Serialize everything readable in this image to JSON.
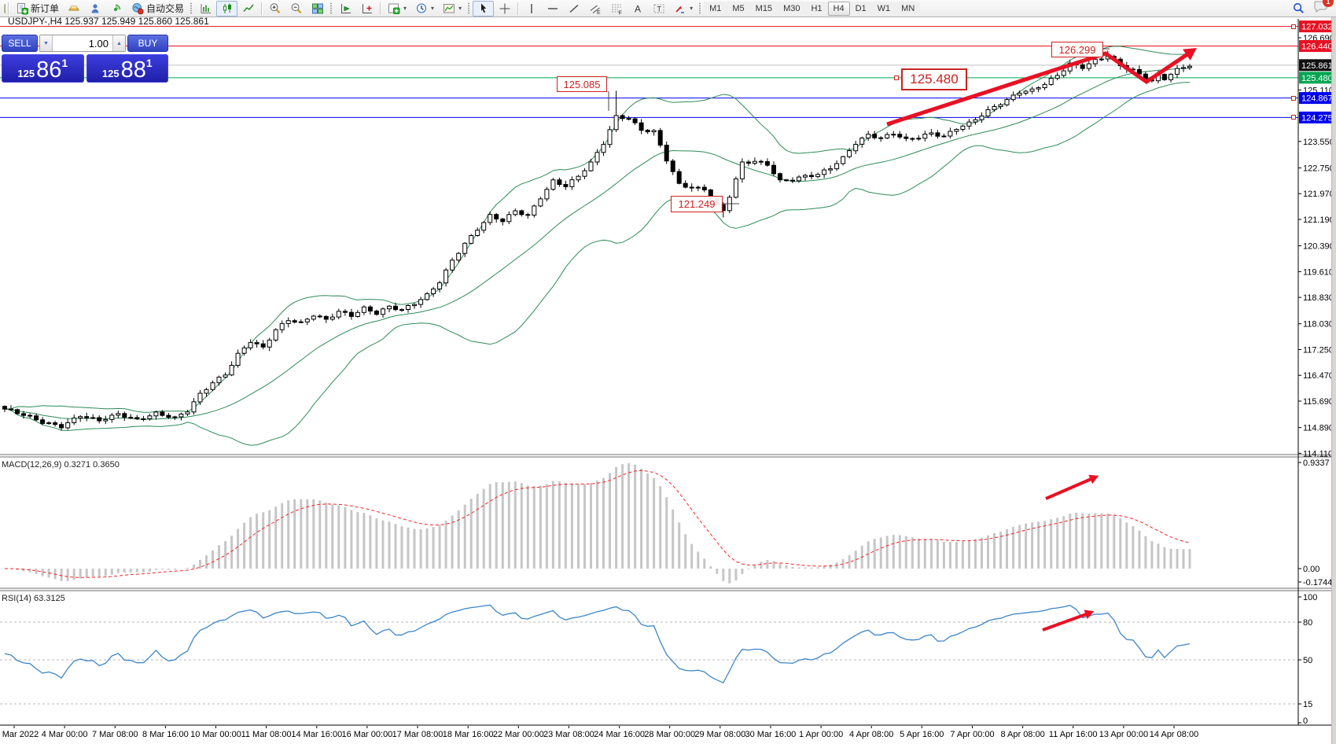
{
  "toolbar": {
    "new_order_label": "新订单",
    "autotrade_label": "自动交易",
    "timeframes": [
      "M1",
      "M5",
      "M15",
      "M30",
      "H1",
      "H4",
      "D1",
      "W1",
      "MN"
    ],
    "active_timeframe": "H4",
    "notification_badge": "1",
    "glyphs": {
      "channel": "E",
      "fibo": "F",
      "text": "A",
      "textbox": "T",
      "spin_down": "▼",
      "spin_up": "▲",
      "caret": "▾"
    }
  },
  "chart_header": {
    "title": "USDJPY-,H4 125.937 125.949 125.860 125.861"
  },
  "one_click": {
    "sell_label": "SELL",
    "buy_label": "BUY",
    "volume": "1.00",
    "sell_prefix": "125",
    "sell_big": "86",
    "sell_sup": "1",
    "buy_prefix": "125",
    "buy_big": "88",
    "buy_sup": "1"
  },
  "indicators": {
    "macd_label": "MACD(12,26,9) 0.3271 0.3650",
    "rsi_label": "RSI(14) 63.3125"
  },
  "chart_data": {
    "type": "candlestick",
    "symbol": "USDJPY",
    "period": "H4",
    "quote": {
      "open": "125.937",
      "high": "125.949",
      "low": "125.860",
      "close": "125.861"
    },
    "colors": {
      "line_red": "#e81123",
      "line_green": "#00a651",
      "line_blue": "#0000ee",
      "current": "#c0c0c0",
      "bollinger": "#2e8b57",
      "rsi": "#3d85c8",
      "macd_hist": "#c6c6c6",
      "macd_signal": "#ff2020",
      "arrow": "#e81123",
      "annotation_red": "#cc2222"
    },
    "y_axis": {
      "ticks": [
        "126.690",
        "125.110",
        "123.550",
        "122.750",
        "121.970",
        "121.190",
        "120.390",
        "119.610",
        "118.830",
        "118.030",
        "117.250",
        "116.470",
        "115.690",
        "114.890",
        "114.110"
      ]
    },
    "price_lines": [
      {
        "price": 127.032,
        "label": "127.032",
        "color": "#e81123",
        "badge": "#e81123"
      },
      {
        "price": 126.44,
        "label": "126.440",
        "color": "#e81123",
        "badge": "#e81123"
      },
      {
        "price": 125.861,
        "label": "125.861",
        "color": "#c0c0c0",
        "badge": "#101010"
      },
      {
        "price": 125.48,
        "label": "125.480",
        "color": "#00a651",
        "badge": "#00a651"
      },
      {
        "price": 124.867,
        "label": "124.867",
        "color": "#0000ee",
        "badge": "#0000ee"
      },
      {
        "price": 124.275,
        "label": "124.275",
        "color": "#0000ee",
        "badge": "#0000ee"
      }
    ],
    "annotations": [
      {
        "text": "125.085"
      },
      {
        "text": "121.249"
      },
      {
        "text": "125.480"
      },
      {
        "text": "126.299"
      }
    ],
    "leaders": [
      [
        774,
        116,
        774,
        141
      ],
      [
        917,
        259,
        940,
        259
      ],
      [
        1403,
        62,
        1411,
        62
      ]
    ],
    "handles": [
      [
        1645,
        34
      ],
      [
        1645,
        125
      ],
      [
        1645,
        149
      ],
      [
        1140,
        99
      ]
    ],
    "trend_arrows": {
      "main": [
        [
          1128,
          158
        ],
        [
          1406,
          68
        ],
        [
          1458,
          104
        ],
        [
          1513,
          67
        ]
      ],
      "macd": [
        [
          1330,
          634
        ],
        [
          1390,
          608
        ]
      ],
      "rsi": [
        [
          1326,
          801
        ],
        [
          1384,
          780
        ]
      ]
    },
    "candles": {
      "count": 189,
      "anchors": [
        [
          0,
          115.45
        ],
        [
          3,
          115.28
        ],
        [
          6,
          115.05
        ],
        [
          9,
          114.92
        ],
        [
          12,
          115.25
        ],
        [
          15,
          115.1
        ],
        [
          18,
          115.3
        ],
        [
          21,
          115.12
        ],
        [
          24,
          115.32
        ],
        [
          27,
          115.18
        ],
        [
          29,
          115.4
        ],
        [
          31,
          115.9
        ],
        [
          33,
          116.25
        ],
        [
          35,
          116.5
        ],
        [
          37,
          117.1
        ],
        [
          39,
          117.5
        ],
        [
          41,
          117.3
        ],
        [
          43,
          117.85
        ],
        [
          45,
          118.15
        ],
        [
          47,
          118.05
        ],
        [
          49,
          118.3
        ],
        [
          51,
          118.15
        ],
        [
          53,
          118.4
        ],
        [
          55,
          118.28
        ],
        [
          57,
          118.5
        ],
        [
          59,
          118.35
        ],
        [
          61,
          118.55
        ],
        [
          63,
          118.45
        ],
        [
          65,
          118.65
        ],
        [
          67,
          118.9
        ],
        [
          69,
          119.3
        ],
        [
          71,
          119.95
        ],
        [
          73,
          120.45
        ],
        [
          75,
          120.9
        ],
        [
          77,
          121.3
        ],
        [
          79,
          121.15
        ],
        [
          81,
          121.45
        ],
        [
          83,
          121.3
        ],
        [
          85,
          121.85
        ],
        [
          87,
          122.35
        ],
        [
          89,
          122.2
        ],
        [
          91,
          122.5
        ],
        [
          93,
          122.9
        ],
        [
          95,
          123.5
        ],
        [
          97,
          124.3
        ],
        [
          99,
          124.25
        ],
        [
          101,
          123.9
        ],
        [
          103,
          123.85
        ],
        [
          105,
          123.0
        ],
        [
          107,
          122.25
        ],
        [
          109,
          122.15
        ],
        [
          111,
          122.1
        ],
        [
          113,
          121.6
        ],
        [
          114,
          121.45
        ],
        [
          115,
          121.9
        ],
        [
          117,
          122.9
        ],
        [
          119,
          122.95
        ],
        [
          121,
          122.85
        ],
        [
          123,
          122.35
        ],
        [
          125,
          122.4
        ],
        [
          127,
          122.5
        ],
        [
          129,
          122.55
        ],
        [
          131,
          122.75
        ],
        [
          133,
          123.05
        ],
        [
          135,
          123.5
        ],
        [
          137,
          123.75
        ],
        [
          139,
          123.65
        ],
        [
          141,
          123.8
        ],
        [
          143,
          123.6
        ],
        [
          145,
          123.68
        ],
        [
          147,
          123.8
        ],
        [
          149,
          123.7
        ],
        [
          151,
          123.95
        ],
        [
          153,
          124.1
        ],
        [
          155,
          124.35
        ],
        [
          157,
          124.6
        ],
        [
          159,
          124.8
        ],
        [
          161,
          125.05
        ],
        [
          163,
          125.1
        ],
        [
          165,
          125.3
        ],
        [
          167,
          125.55
        ],
        [
          169,
          125.9
        ],
        [
          171,
          125.8
        ],
        [
          173,
          126.0
        ],
        [
          175,
          126.15
        ],
        [
          177,
          125.85
        ],
        [
          179,
          125.7
        ],
        [
          181,
          125.45
        ],
        [
          182,
          125.38
        ],
        [
          183,
          125.55
        ],
        [
          184,
          125.45
        ],
        [
          185,
          125.6
        ],
        [
          186,
          125.72
        ],
        [
          187,
          125.8
        ],
        [
          188,
          125.86
        ]
      ],
      "wick_events": [
        {
          "i": 9,
          "low": 114.8
        },
        {
          "i": 97,
          "high": 125.085
        },
        {
          "i": 114,
          "low": 121.249
        },
        {
          "i": 175,
          "high": 126.299
        }
      ]
    },
    "bollinger": {
      "period": 20,
      "deviation": 2
    },
    "macd": {
      "params": [
        12,
        26,
        9
      ],
      "axis_labels": [
        "0.9337",
        "0.00",
        "-0.1744"
      ]
    },
    "rsi": {
      "period": 14,
      "levels": [
        80,
        50,
        15
      ],
      "axis_labels": [
        "100",
        "80",
        "50",
        "15",
        "0"
      ]
    },
    "time_labels": [
      "Mar 2022",
      "4 Mar 00:00",
      "7 Mar 08:00",
      "8 Mar 16:00",
      "10 Mar 00:00",
      "11 Mar 08:00",
      "14 Mar 16:00",
      "16 Mar 00:00",
      "17 Mar 08:00",
      "18 Mar 16:00",
      "22 Mar 00:00",
      "23 Mar 08:00",
      "24 Mar 16:00",
      "28 Mar 00:00",
      "29 Mar 08:00",
      "30 Mar 16:00",
      "1 Apr 00:00",
      "4 Apr 08:00",
      "5 Apr 16:00",
      "7 Apr 00:00",
      "8 Apr 08:00",
      "11 Apr 16:00",
      "13 Apr 00:00",
      "14 Apr 08:00"
    ]
  }
}
